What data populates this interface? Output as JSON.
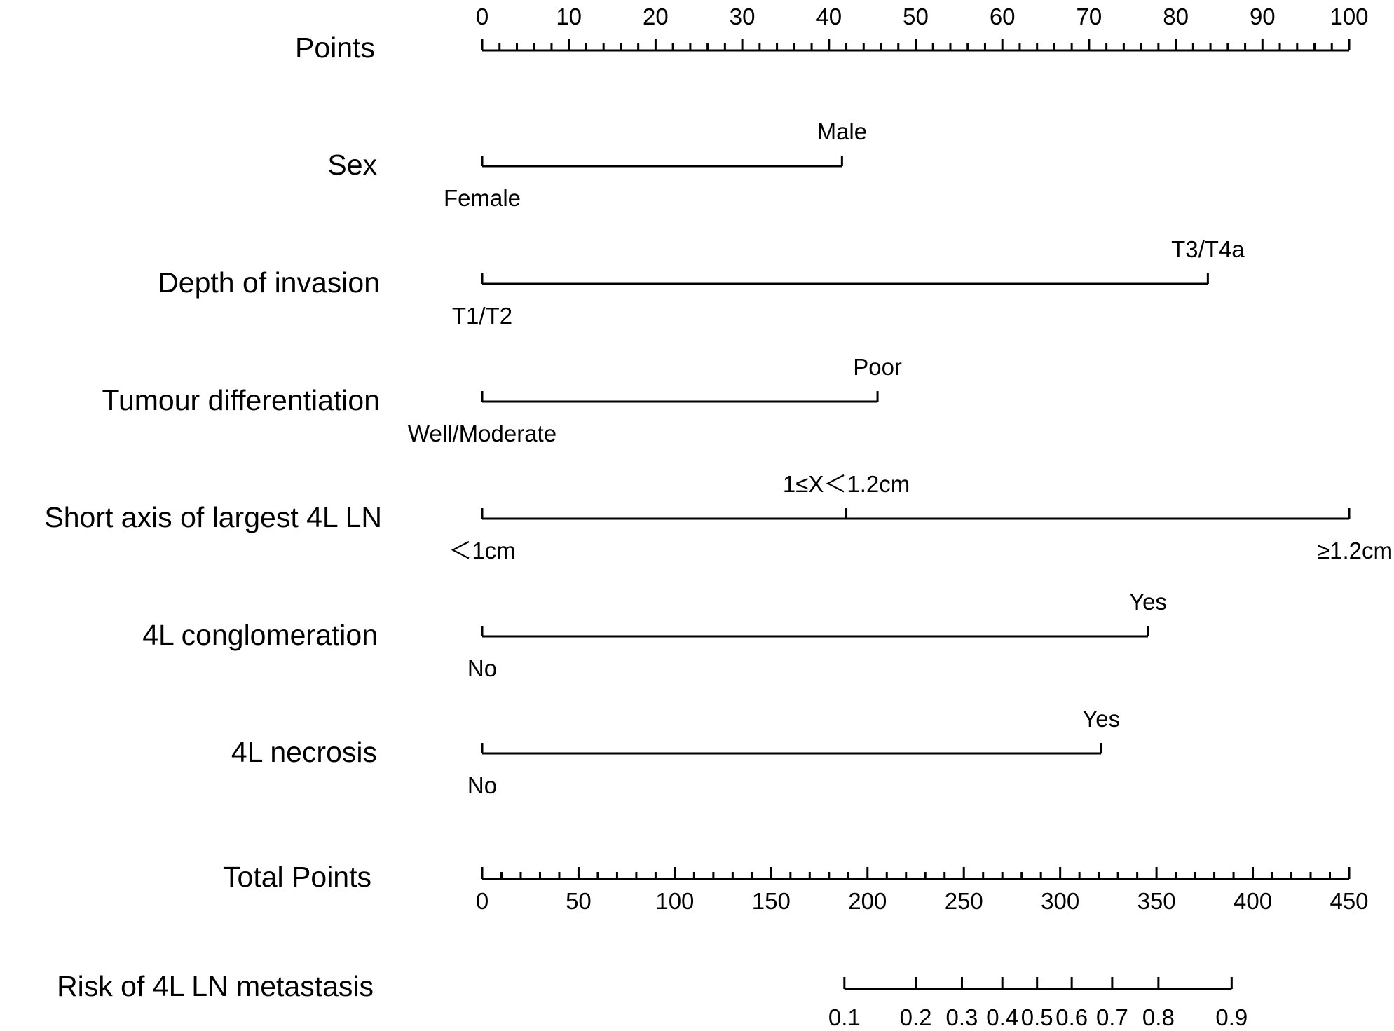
{
  "chart_data": {
    "type": "nomogram",
    "title": "",
    "points_axis": {
      "label": "Points",
      "min": 0,
      "max": 100,
      "major_step": 10,
      "minor_step": 2,
      "tick_labels": [
        "0",
        "10",
        "20",
        "30",
        "40",
        "50",
        "60",
        "70",
        "80",
        "90",
        "100"
      ]
    },
    "variables": [
      {
        "label": "Sex",
        "levels": [
          {
            "text": "Female",
            "points": 0,
            "side": "below"
          },
          {
            "text": "Male",
            "points": 41.5,
            "side": "above"
          }
        ]
      },
      {
        "label": "Depth of invasion",
        "levels": [
          {
            "text": "T1/T2",
            "points": 0,
            "side": "below"
          },
          {
            "text": "T3/T4a",
            "points": 83.7,
            "side": "above"
          }
        ]
      },
      {
        "label": "Tumour differentiation",
        "levels": [
          {
            "text": "Well/Moderate",
            "points": 0,
            "side": "below"
          },
          {
            "text": "Poor",
            "points": 45.6,
            "side": "above"
          }
        ]
      },
      {
        "label": "Short axis of largest 4L LN",
        "levels": [
          {
            "text": "＜1cm",
            "points": 0,
            "side": "below"
          },
          {
            "text": "1≤X＜1.2cm",
            "points": 42,
            "side": "above"
          },
          {
            "text": "≥1.2cm",
            "points": 100,
            "side": "below"
          }
        ]
      },
      {
        "label": "4L conglomeration",
        "levels": [
          {
            "text": "No",
            "points": 0,
            "side": "below"
          },
          {
            "text": "Yes",
            "points": 76.8,
            "side": "above"
          }
        ]
      },
      {
        "label": "4L necrosis",
        "levels": [
          {
            "text": "No",
            "points": 0,
            "side": "below"
          },
          {
            "text": "Yes",
            "points": 71.4,
            "side": "above"
          }
        ]
      }
    ],
    "total_points_axis": {
      "label": "Total Points",
      "min": 0,
      "max": 450,
      "major_step": 50,
      "minor_step": 10,
      "tick_labels": [
        "0",
        "50",
        "100",
        "150",
        "200",
        "250",
        "300",
        "350",
        "400",
        "450"
      ]
    },
    "risk_axis": {
      "label": "Risk of 4L LN metastasis",
      "ticks": [
        {
          "text": "0.1",
          "total_points": 188
        },
        {
          "text": "0.2",
          "total_points": 225
        },
        {
          "text": "0.3",
          "total_points": 249
        },
        {
          "text": "0.4",
          "total_points": 270
        },
        {
          "text": "0.5",
          "total_points": 288
        },
        {
          "text": "0.6",
          "total_points": 306
        },
        {
          "text": "0.7",
          "total_points": 327
        },
        {
          "text": "0.8",
          "total_points": 351
        },
        {
          "text": "0.9",
          "total_points": 389
        }
      ]
    }
  }
}
